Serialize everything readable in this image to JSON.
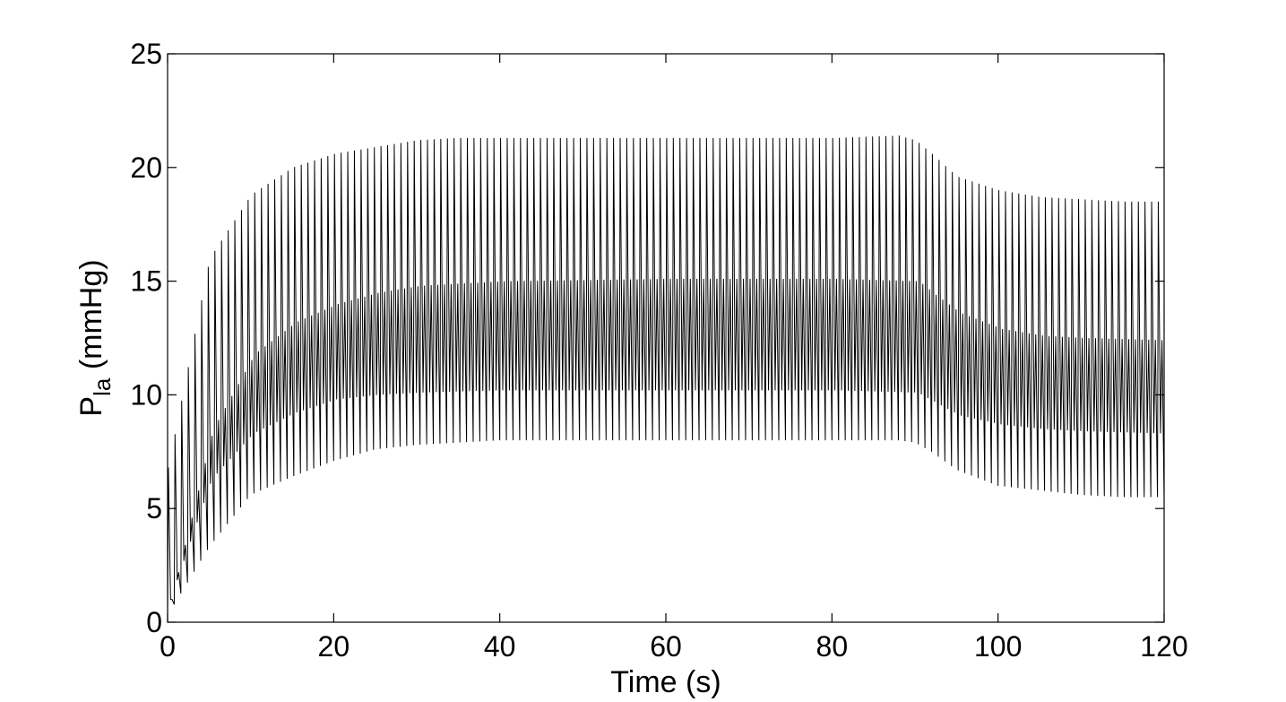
{
  "chart_data": {
    "type": "line",
    "title": "",
    "xlabel": "Time (s)",
    "ylabel": {
      "main": "P",
      "subscript": "la",
      "unit": " (mmHg)"
    },
    "xlim": [
      0,
      120
    ],
    "ylim": [
      0,
      25
    ],
    "xticks": [
      "0",
      "20",
      "40",
      "60",
      "80",
      "100",
      "120"
    ],
    "yticks": [
      "0",
      "5",
      "10",
      "15",
      "20",
      "25"
    ],
    "grid": false,
    "legend": "none",
    "line_color": "#000000",
    "series": [
      {
        "values_description_free": true,
        "beat_period_s": 0.8,
        "envelope_max": {
          "x": [
            0,
            5,
            10,
            15,
            20,
            25,
            30,
            35,
            40,
            50,
            60,
            70,
            80,
            88,
            90,
            92,
            95,
            100,
            105,
            110,
            115,
            120
          ],
          "y": [
            6.8,
            16.0,
            18.8,
            20.0,
            20.6,
            20.9,
            21.2,
            21.3,
            21.3,
            21.3,
            21.3,
            21.3,
            21.3,
            21.4,
            21.2,
            20.6,
            19.6,
            19.0,
            18.7,
            18.6,
            18.5,
            18.5
          ]
        },
        "envelope_min": {
          "x": [
            0,
            5,
            10,
            15,
            20,
            25,
            30,
            35,
            40,
            50,
            60,
            70,
            80,
            88,
            90,
            92,
            95,
            100,
            105,
            110,
            115,
            120
          ],
          "y": [
            0.3,
            3.3,
            5.6,
            6.4,
            7.1,
            7.6,
            7.8,
            7.9,
            8.0,
            8.0,
            8.0,
            8.0,
            8.0,
            8.0,
            7.9,
            7.5,
            6.7,
            6.0,
            5.8,
            5.6,
            5.5,
            5.5
          ]
        },
        "secondary_max": {
          "x": [
            0,
            5,
            10,
            15,
            20,
            25,
            30,
            40,
            60,
            80,
            90,
            92,
            95,
            100,
            105,
            110,
            120
          ],
          "y": [
            1.0,
            8.5,
            11.8,
            13.2,
            14.0,
            14.5,
            14.8,
            15.0,
            15.1,
            15.1,
            15.0,
            14.4,
            13.6,
            12.9,
            12.6,
            12.5,
            12.4
          ]
        },
        "secondary_min": {
          "x": [
            0,
            5,
            10,
            15,
            20,
            25,
            30,
            40,
            60,
            80,
            90,
            92,
            95,
            100,
            105,
            110,
            120
          ],
          "y": [
            1.0,
            6.3,
            8.3,
            9.2,
            9.8,
            10.0,
            10.1,
            10.2,
            10.2,
            10.2,
            10.1,
            9.7,
            9.1,
            8.7,
            8.5,
            8.4,
            8.3
          ]
        }
      }
    ]
  }
}
